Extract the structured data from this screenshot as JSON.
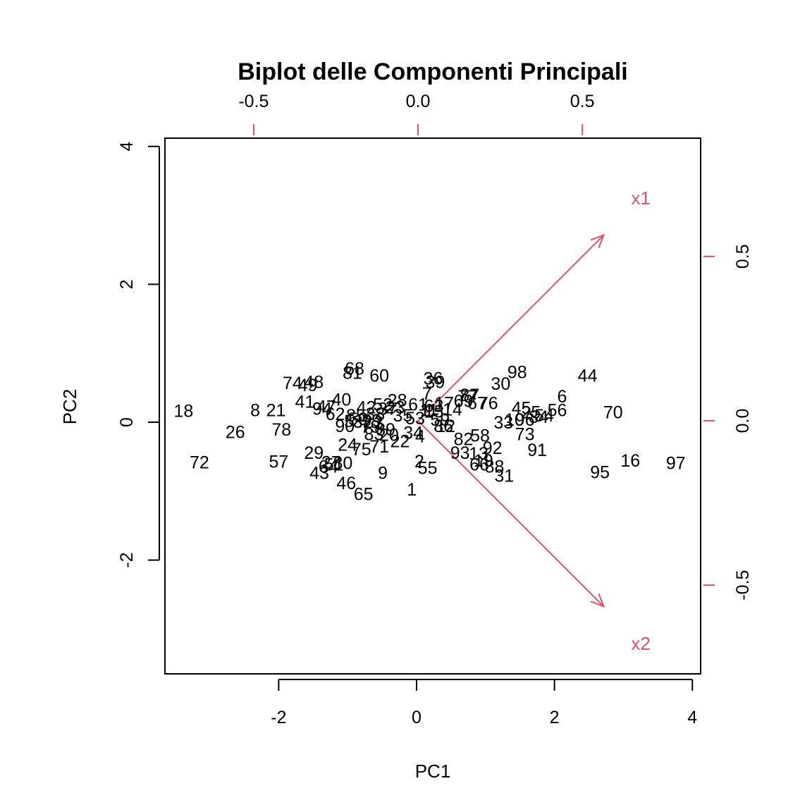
{
  "chart_data": {
    "type": "scatter",
    "subtype": "biplot",
    "title": "Biplot delle Componenti Principali",
    "xlabel": "PC1",
    "ylabel": "PC2",
    "xlim": [
      -3.65,
      4.12
    ],
    "ylim": [
      -3.65,
      4.12
    ],
    "loading_lim": [
      -0.77,
      0.86
    ],
    "x_ticks": [
      -2,
      0,
      2,
      4
    ],
    "y_ticks": [
      -2,
      0,
      2,
      4
    ],
    "top_ticks": [
      -0.5,
      0.0,
      0.5
    ],
    "right_ticks": [
      -0.5,
      0.0,
      0.5
    ],
    "x_tick_labels": [
      "-2",
      "0",
      "2",
      "4"
    ],
    "y_tick_labels": [
      "-2",
      "0",
      "2",
      "4"
    ],
    "top_tick_labels": [
      "-0.5",
      "0.0",
      "0.5"
    ],
    "right_tick_labels": [
      "-0.5",
      "0.0",
      "0.5"
    ],
    "arrow_color": "#DF536B",
    "point_color": "#000000",
    "loadings": [
      {
        "name": "x1",
        "x": 0.565,
        "y": 0.565
      },
      {
        "name": "x2",
        "x": 0.565,
        "y": -0.565
      }
    ],
    "points": [
      {
        "label": "1",
        "x": -0.07,
        "y": -0.97
      },
      {
        "label": "2",
        "x": 0.04,
        "y": -0.56
      },
      {
        "label": "4",
        "x": 0.05,
        "y": -0.2
      },
      {
        "label": "6",
        "x": 2.11,
        "y": 0.38
      },
      {
        "label": "7",
        "x": 0.15,
        "y": 0.42
      },
      {
        "label": "8",
        "x": -2.34,
        "y": 0.18
      },
      {
        "label": "9",
        "x": -0.49,
        "y": -0.73
      },
      {
        "label": "16",
        "x": 3.1,
        "y": -0.55
      },
      {
        "label": "18",
        "x": -3.38,
        "y": 0.17
      },
      {
        "label": "21",
        "x": -2.04,
        "y": 0.18
      },
      {
        "label": "22",
        "x": -0.24,
        "y": -0.27
      },
      {
        "label": "23",
        "x": -0.31,
        "y": 0.22
      },
      {
        "label": "24",
        "x": -1.0,
        "y": -0.32
      },
      {
        "label": "26",
        "x": -2.63,
        "y": -0.14
      },
      {
        "label": "28",
        "x": -0.28,
        "y": 0.32
      },
      {
        "label": "29",
        "x": -1.49,
        "y": -0.44
      },
      {
        "label": "30",
        "x": 1.22,
        "y": 0.56
      },
      {
        "label": "31",
        "x": 1.27,
        "y": -0.77
      },
      {
        "label": "33",
        "x": 1.26,
        "y": 0.0
      },
      {
        "label": "36",
        "x": 0.24,
        "y": 0.64
      },
      {
        "label": "39",
        "x": 0.27,
        "y": 0.59
      },
      {
        "label": "40",
        "x": -1.09,
        "y": 0.33
      },
      {
        "label": "41",
        "x": -1.62,
        "y": 0.3
      },
      {
        "label": "42",
        "x": -0.73,
        "y": 0.22
      },
      {
        "label": "43",
        "x": -1.41,
        "y": -0.73
      },
      {
        "label": "44",
        "x": 2.48,
        "y": 0.68
      },
      {
        "label": "45",
        "x": 1.52,
        "y": 0.21
      },
      {
        "label": "46",
        "x": -1.02,
        "y": -0.88
      },
      {
        "label": "47",
        "x": -1.31,
        "y": 0.23
      },
      {
        "label": "48",
        "x": -1.49,
        "y": 0.59
      },
      {
        "label": "49",
        "x": -1.58,
        "y": 0.54
      },
      {
        "label": "51",
        "x": -1.2,
        "y": -0.61
      },
      {
        "label": "52",
        "x": -0.49,
        "y": 0.26
      },
      {
        "label": "54",
        "x": 1.85,
        "y": 0.1
      },
      {
        "label": "55",
        "x": 0.16,
        "y": -0.66
      },
      {
        "label": "56",
        "x": 2.04,
        "y": 0.18
      },
      {
        "label": "57",
        "x": -2.0,
        "y": -0.57
      },
      {
        "label": "58",
        "x": 0.92,
        "y": -0.19
      },
      {
        "label": "60",
        "x": -0.54,
        "y": 0.68
      },
      {
        "label": "61",
        "x": 0.02,
        "y": 0.26
      },
      {
        "label": "62",
        "x": -1.18,
        "y": 0.12
      },
      {
        "label": "63",
        "x": 0.25,
        "y": 0.24
      },
      {
        "label": "64",
        "x": -1.28,
        "y": -0.64
      },
      {
        "label": "65",
        "x": -0.77,
        "y": -1.04
      },
      {
        "label": "66",
        "x": 0.91,
        "y": -0.61
      },
      {
        "label": "67",
        "x": 0.88,
        "y": 0.28
      },
      {
        "label": "68",
        "x": -0.9,
        "y": 0.78
      },
      {
        "label": "69",
        "x": 0.68,
        "y": 0.31
      },
      {
        "label": "70",
        "x": 2.85,
        "y": 0.15
      },
      {
        "label": "71",
        "x": -0.54,
        "y": -0.35
      },
      {
        "label": "72",
        "x": -3.15,
        "y": -0.58
      },
      {
        "label": "73",
        "x": 1.57,
        "y": -0.17
      },
      {
        "label": "74",
        "x": -1.8,
        "y": 0.57
      },
      {
        "label": "75",
        "x": -0.8,
        "y": -0.39
      },
      {
        "label": "76",
        "x": 1.04,
        "y": 0.28
      },
      {
        "label": "77",
        "x": 0.74,
        "y": 0.38
      },
      {
        "label": "78",
        "x": -1.96,
        "y": -0.1
      },
      {
        "label": "80",
        "x": -1.07,
        "y": -0.59
      },
      {
        "label": "81",
        "x": -0.93,
        "y": 0.72
      },
      {
        "label": "82",
        "x": 0.68,
        "y": -0.24
      },
      {
        "label": "83",
        "x": -0.62,
        "y": -0.17
      },
      {
        "label": "84",
        "x": 1.77,
        "y": 0.08
      },
      {
        "label": "86",
        "x": 0.39,
        "y": -0.05
      },
      {
        "label": "87",
        "x": 0.77,
        "y": 0.4
      },
      {
        "label": "88",
        "x": 1.13,
        "y": -0.64
      },
      {
        "label": "90",
        "x": -1.04,
        "y": -0.05
      },
      {
        "label": "91",
        "x": 1.75,
        "y": -0.4
      },
      {
        "label": "92",
        "x": 1.1,
        "y": -0.37
      },
      {
        "label": "93",
        "x": 0.63,
        "y": -0.44
      },
      {
        "label": "94",
        "x": -1.37,
        "y": 0.2
      },
      {
        "label": "95",
        "x": 2.66,
        "y": -0.72
      },
      {
        "label": "96",
        "x": 1.57,
        "y": 0.04
      },
      {
        "label": "97",
        "x": 3.76,
        "y": -0.59
      },
      {
        "label": "98",
        "x": 1.46,
        "y": 0.73
      },
      {
        "label": "99",
        "x": -0.65,
        "y": 0.03
      },
      {
        "label": "10",
        "x": 1.42,
        "y": 0.04
      },
      {
        "label": "11",
        "x": 0.18,
        "y": 0.18
      },
      {
        "label": "12",
        "x": 0.42,
        "y": -0.05
      },
      {
        "label": "13",
        "x": 0.9,
        "y": -0.45
      },
      {
        "label": "14",
        "x": 0.52,
        "y": 0.19
      },
      {
        "label": "15",
        "x": 0.25,
        "y": 0.16
      },
      {
        "label": "17",
        "x": 0.4,
        "y": 0.28
      },
      {
        "label": "19",
        "x": 0.97,
        "y": -0.55
      },
      {
        "label": "20",
        "x": -0.4,
        "y": -0.18
      },
      {
        "label": "25",
        "x": 1.66,
        "y": 0.15
      },
      {
        "label": "27",
        "x": -1.24,
        "y": -0.58
      },
      {
        "label": "32",
        "x": -0.78,
        "y": 0.01
      },
      {
        "label": "34",
        "x": -0.05,
        "y": -0.15
      },
      {
        "label": "35",
        "x": -0.2,
        "y": 0.1
      },
      {
        "label": "37",
        "x": -0.42,
        "y": 0.2
      },
      {
        "label": "38",
        "x": -0.6,
        "y": 0.12
      },
      {
        "label": "50",
        "x": -0.85,
        "y": 0.05
      },
      {
        "label": "53",
        "x": -0.02,
        "y": 0.06
      },
      {
        "label": "59",
        "x": 0.34,
        "y": 0.04
      },
      {
        "label": "79",
        "x": -0.67,
        "y": -0.06
      },
      {
        "label": "85",
        "x": -0.88,
        "y": 0.1
      },
      {
        "label": "89",
        "x": -0.45,
        "y": -0.1
      },
      {
        "label": "3",
        "x": -0.55,
        "y": 0.0
      },
      {
        "label": "5",
        "x": -0.98,
        "y": 0.02
      }
    ]
  }
}
